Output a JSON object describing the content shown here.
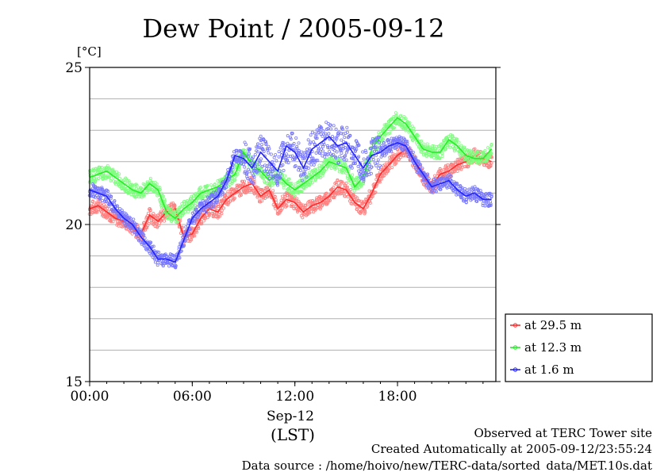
{
  "chart_data": {
    "type": "line",
    "title": "Dew Point / 2005-09-12",
    "ylabel": "[°C]",
    "ylim": [
      15,
      25
    ],
    "xlim": [
      0,
      23.75
    ],
    "yticks": [
      {
        "v": 15,
        "label": "15"
      },
      {
        "v": 20,
        "label": "20"
      },
      {
        "v": 25,
        "label": "25"
      }
    ],
    "xticks": [
      {
        "v": 0,
        "label": "00:00"
      },
      {
        "v": 6,
        "label": "06:00"
      },
      {
        "v": 12,
        "label": "12:00"
      },
      {
        "v": 18,
        "label": "18:00"
      }
    ],
    "x_sublabel": "Sep-12",
    "x_unit": "(LST)",
    "grid": true,
    "legend_position": "right-bottom",
    "series": [
      {
        "name": "at 29.5 m",
        "color": "#ff2a2a",
        "x": [
          0,
          0.5,
          1,
          1.5,
          2,
          2.5,
          3,
          3.5,
          4,
          4.5,
          5,
          5.5,
          6,
          6.5,
          7,
          7.5,
          8,
          8.5,
          9,
          9.5,
          10,
          10.5,
          11,
          11.5,
          12,
          12.5,
          13,
          13.5,
          14,
          14.5,
          15,
          15.5,
          16,
          16.5,
          17,
          17.5,
          18,
          18.5,
          19,
          19.5,
          20,
          20.5,
          21,
          21.5,
          22,
          22.5,
          23,
          23.5
        ],
        "y": [
          20.5,
          20.6,
          20.4,
          20.2,
          20.1,
          19.9,
          19.7,
          20.3,
          20.1,
          20.4,
          20.5,
          19.6,
          19.7,
          20.2,
          20.5,
          20.4,
          20.8,
          21.0,
          21.2,
          21.3,
          20.9,
          21.1,
          20.5,
          20.8,
          20.7,
          20.4,
          20.6,
          20.7,
          20.9,
          21.2,
          21.1,
          20.7,
          20.5,
          21.0,
          21.6,
          21.9,
          22.2,
          22.4,
          22.0,
          21.5,
          21.2,
          21.6,
          21.7,
          21.9,
          22.0,
          22.2,
          22.1,
          22.0
        ]
      },
      {
        "name": "at 12.3 m",
        "color": "#22ee22",
        "x": [
          0,
          0.5,
          1,
          1.5,
          2,
          2.5,
          3,
          3.5,
          4,
          4.5,
          5,
          5.5,
          6,
          6.5,
          7,
          7.5,
          8,
          8.5,
          9,
          9.5,
          10,
          10.5,
          11,
          11.5,
          12,
          12.5,
          13,
          13.5,
          14,
          14.5,
          15,
          15.5,
          16,
          16.5,
          17,
          17.5,
          18,
          18.5,
          19,
          19.5,
          20,
          20.5,
          21,
          21.5,
          22,
          22.5,
          23,
          23.5
        ],
        "y": [
          21.5,
          21.6,
          21.7,
          21.5,
          21.3,
          21.1,
          21.0,
          21.3,
          21.1,
          20.4,
          20.2,
          20.5,
          20.7,
          21.0,
          21.1,
          21.2,
          21.4,
          21.6,
          22.3,
          21.9,
          21.7,
          21.4,
          21.6,
          21.3,
          21.1,
          21.3,
          21.5,
          21.7,
          22.0,
          21.9,
          21.8,
          21.2,
          21.5,
          22.4,
          22.8,
          23.1,
          23.4,
          23.2,
          22.8,
          22.4,
          22.3,
          22.3,
          22.7,
          22.5,
          22.2,
          22.1,
          22.1,
          22.4
        ]
      },
      {
        "name": "at 1.6 m",
        "color": "#2222ff",
        "x": [
          0,
          0.5,
          1,
          1.5,
          2,
          2.5,
          3,
          3.5,
          4,
          4.5,
          5,
          5.5,
          6,
          6.5,
          7,
          7.5,
          8,
          8.5,
          9,
          9.5,
          10,
          10.5,
          11,
          11.5,
          12,
          12.5,
          13,
          13.5,
          14,
          14.5,
          15,
          15.5,
          16,
          16.5,
          17,
          17.5,
          18,
          18.5,
          19,
          19.5,
          20,
          20.5,
          21,
          21.5,
          22,
          22.5,
          23,
          23.5
        ],
        "y": [
          21.1,
          21.0,
          20.9,
          20.5,
          20.2,
          20.0,
          19.6,
          19.3,
          18.9,
          18.9,
          18.8,
          19.5,
          20.2,
          20.5,
          20.7,
          20.9,
          21.4,
          22.2,
          22.1,
          21.8,
          22.3,
          22.0,
          21.7,
          22.5,
          22.3,
          21.8,
          22.4,
          22.6,
          22.8,
          22.5,
          22.6,
          22.2,
          21.8,
          22.2,
          22.3,
          22.5,
          22.6,
          22.5,
          22.0,
          21.6,
          21.2,
          21.3,
          21.4,
          21.1,
          20.9,
          21.0,
          20.8,
          20.8
        ]
      }
    ]
  },
  "footer": {
    "line1": "Observed at TERC Tower site",
    "line2": "Created Automatically at 2005-09-12/23:55:24",
    "line3": "Data source : /home/hoivo/new/TERC-data/sorted_data/MET.10s.dat"
  },
  "colors": {
    "grid": "#b0b0b0",
    "frame": "#000000",
    "background": "#ffffff"
  }
}
